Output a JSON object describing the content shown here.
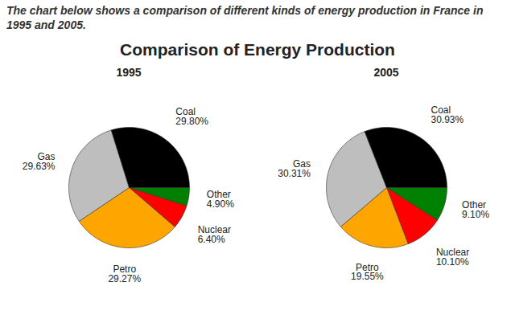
{
  "caption": "The chart below shows a comparison of different kinds of energy production in France in 1995 and 2005.",
  "title": "Comparison of Energy Production",
  "chart_data": [
    {
      "type": "pie",
      "title": "1995",
      "categories": [
        "Other",
        "Nuclear",
        "Petro",
        "Gas",
        "Coal"
      ],
      "values": [
        4.9,
        6.4,
        29.27,
        29.63,
        29.8
      ],
      "value_labels": [
        "4.90%",
        "6.40%",
        "29.27%",
        "29.63%",
        "29.80%"
      ],
      "colors": [
        "#008000",
        "#ff0000",
        "#ffa500",
        "#bebebe",
        "#000000"
      ],
      "data_labels": true
    },
    {
      "type": "pie",
      "title": "2005",
      "categories": [
        "Other",
        "Nuclear",
        "Petro",
        "Gas",
        "Coal"
      ],
      "values": [
        9.1,
        10.1,
        19.55,
        30.31,
        30.93
      ],
      "value_labels": [
        "9.10%",
        "10.10%",
        "19.55%",
        "30.31%",
        "30.93%"
      ],
      "colors": [
        "#008000",
        "#ff0000",
        "#ffa500",
        "#bebebe",
        "#000000"
      ],
      "data_labels": true
    }
  ]
}
